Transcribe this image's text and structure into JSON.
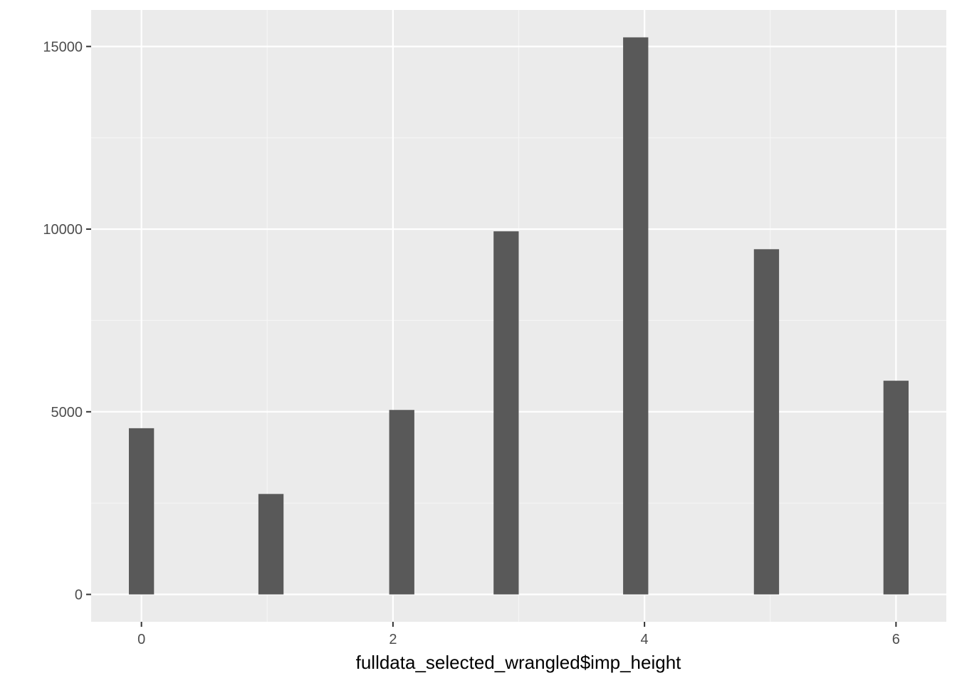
{
  "chart_data": {
    "type": "bar",
    "xlabel": "fulldata_selected_wrangled$imp_height",
    "ylabel": "",
    "xlim": [
      -0.4,
      6.4
    ],
    "ylim": [
      -750,
      16000
    ],
    "x_ticks": [
      0,
      2,
      4,
      6
    ],
    "x_tick_labels": [
      "0",
      "2",
      "4",
      "6"
    ],
    "y_ticks": [
      0,
      5000,
      10000,
      15000
    ],
    "y_tick_labels": [
      "0",
      "5000",
      "10000",
      "15000"
    ],
    "grid": true,
    "bar_width": 0.2,
    "bars": [
      {
        "x": 0.0,
        "value": 4550
      },
      {
        "x": 1.03,
        "value": 2750
      },
      {
        "x": 2.07,
        "value": 5050
      },
      {
        "x": 2.9,
        "value": 9940
      },
      {
        "x": 3.93,
        "value": 15250
      },
      {
        "x": 4.97,
        "value": 9450
      },
      {
        "x": 6.0,
        "value": 5850
      }
    ],
    "colors": {
      "panel_background": "#EBEBEB",
      "grid_major": "#FFFFFF",
      "grid_minor": "#F5F5F5",
      "bar_fill": "#595959",
      "tick_label": "#4D4D4D",
      "axis_title": "#000000"
    }
  }
}
